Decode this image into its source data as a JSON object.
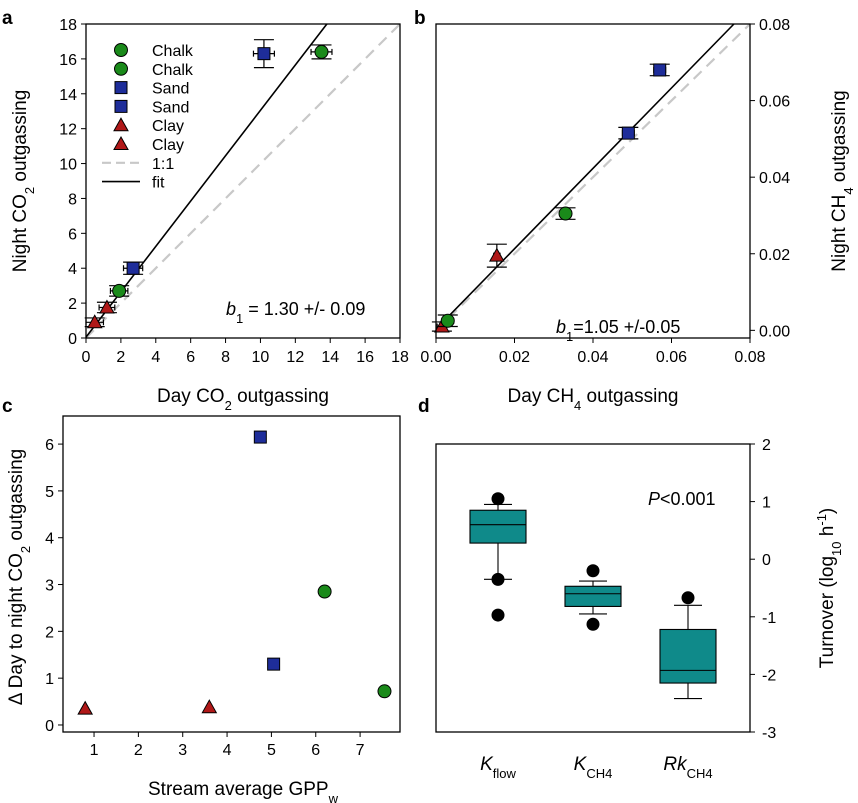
{
  "chart_data": [
    {
      "panel": "a",
      "type": "scatter",
      "xlabel": "Day CO2 outgassing",
      "ylabel": "Night CO2 outgassing",
      "xlim": [
        0,
        18
      ],
      "ylim": [
        0,
        18
      ],
      "xticks": [
        0,
        2,
        4,
        6,
        8,
        10,
        12,
        14,
        16,
        18
      ],
      "yticks": [
        0,
        2,
        4,
        6,
        8,
        10,
        12,
        14,
        16,
        18
      ],
      "legend_position": "top-left",
      "legend": [
        {
          "label": "Chalk",
          "marker": "circle",
          "color": "#1a8a1a"
        },
        {
          "label": "Chalk",
          "marker": "circle",
          "color": "#1a8a1a"
        },
        {
          "label": "Sand",
          "marker": "square",
          "color": "#1e2d9a"
        },
        {
          "label": "Sand",
          "marker": "square",
          "color": "#1e2d9a"
        },
        {
          "label": "Clay",
          "marker": "triangle",
          "color": "#b01818"
        },
        {
          "label": "Clay",
          "marker": "triangle",
          "color": "#b01818"
        },
        {
          "label": "1:1",
          "line": "dashed",
          "color": "#c8c8c8"
        },
        {
          "label": "fit",
          "line": "solid",
          "color": "#000000"
        }
      ],
      "annotation_var": "b",
      "annotation_sub": "1",
      "annotation_value": " = 1.30 +/- 0.09",
      "fit": {
        "slope": 1.3,
        "intercept": 0.05
      },
      "points": [
        {
          "group": "Clay",
          "x": 0.5,
          "y": 0.9,
          "xerr": 0.5,
          "yerr": 0.25
        },
        {
          "group": "Clay",
          "x": 1.2,
          "y": 1.75,
          "xerr": 0.45,
          "yerr": 0.3
        },
        {
          "group": "Chalk",
          "x": 1.9,
          "y": 2.7,
          "xerr": 0.5,
          "yerr": 0.3
        },
        {
          "group": "Sand",
          "x": 2.7,
          "y": 4.0,
          "xerr": 0.55,
          "yerr": 0.35
        },
        {
          "group": "Sand",
          "x": 10.2,
          "y": 16.3,
          "xerr": 0.6,
          "yerr": 0.8
        },
        {
          "group": "Chalk",
          "x": 13.5,
          "y": 16.4,
          "xerr": 0.6,
          "yerr": 0.4
        }
      ]
    },
    {
      "panel": "b",
      "type": "scatter",
      "xlabel": "Day CH4 outgassing",
      "ylabel": "Night CH4 outgassing",
      "xlim": [
        0,
        0.08
      ],
      "ylim": [
        -0.002,
        0.08
      ],
      "xticks": [
        "0.00",
        "0.02",
        "0.04",
        "0.06",
        "0.08"
      ],
      "yticks": [
        "0.00",
        "0.02",
        "0.04",
        "0.06",
        "0.08"
      ],
      "y_axis_side": "right",
      "annotation_var": "b",
      "annotation_sub": "1",
      "annotation_value": "=1.05 +/-0.05",
      "fit": {
        "slope": 1.05,
        "intercept": 0.0003
      },
      "points": [
        {
          "group": "Clay",
          "x": 0.0015,
          "y": 0.001,
          "xerr": 0.0012,
          "yerr": 0.0012
        },
        {
          "group": "Chalk",
          "x": 0.003,
          "y": 0.0025,
          "xerr": 0.0015,
          "yerr": 0.0015
        },
        {
          "group": "Clay",
          "x": 0.0155,
          "y": 0.0195,
          "xerr": 0.0008,
          "yerr": 0.003
        },
        {
          "group": "Chalk",
          "x": 0.033,
          "y": 0.0305,
          "xerr": 0.0015,
          "yerr": 0.0015
        },
        {
          "group": "Sand",
          "x": 0.049,
          "y": 0.0515,
          "xerr": 0.0015,
          "yerr": 0.0015
        },
        {
          "group": "Sand",
          "x": 0.057,
          "y": 0.068,
          "xerr": 0.0015,
          "yerr": 0.0015
        }
      ]
    },
    {
      "panel": "c",
      "type": "scatter",
      "xlabel": "Stream average GPP",
      "xlabel_sub": "w",
      "ylabel": "Δ Day to night CO2 outgassing",
      "xlim": [
        0.3,
        7.9
      ],
      "ylim": [
        -0.15,
        6.6
      ],
      "xticks": [
        1,
        2,
        3,
        4,
        5,
        6,
        7
      ],
      "yticks": [
        0,
        1,
        2,
        3,
        4,
        5,
        6
      ],
      "points": [
        {
          "group": "Clay",
          "x": 0.8,
          "y": 0.35
        },
        {
          "group": "Clay",
          "x": 3.6,
          "y": 0.38
        },
        {
          "group": "Sand",
          "x": 4.75,
          "y": 6.15
        },
        {
          "group": "Sand",
          "x": 5.05,
          "y": 1.3
        },
        {
          "group": "Chalk",
          "x": 6.2,
          "y": 2.85
        },
        {
          "group": "Chalk",
          "x": 7.55,
          "y": 0.72
        }
      ]
    },
    {
      "panel": "d",
      "type": "box",
      "ylabel": "Turnover (log10 h-1)",
      "y_axis_side": "right",
      "ylim": [
        -3,
        2
      ],
      "yticks": [
        -3,
        -2,
        -1,
        0,
        1,
        2
      ],
      "annotation_var": "P",
      "annotation_value": "<0.001",
      "color": "#0f8a8a",
      "boxes": [
        {
          "label_main": "K",
          "label_sub": "flow",
          "whisker_low": -0.35,
          "q1": 0.28,
          "median": 0.6,
          "q3": 0.85,
          "whisker_high": 0.95,
          "outliers": [
            1.05,
            -0.35,
            -0.97
          ]
        },
        {
          "label_main": "K",
          "label_sub": "CH4",
          "whisker_low": -0.95,
          "q1": -0.82,
          "median": -0.6,
          "q3": -0.47,
          "whisker_high": -0.38,
          "outliers": [
            -0.2,
            -1.13
          ]
        },
        {
          "label_main": "Rk",
          "label_sub": "CH4",
          "whisker_low": -2.42,
          "q1": -2.15,
          "median": -1.93,
          "q3": -1.22,
          "whisker_high": -0.8,
          "outliers": [
            -0.67
          ]
        }
      ]
    }
  ],
  "colors": {
    "Chalk": "#1a8a1a",
    "Sand": "#1e2d9a",
    "Clay": "#b01818",
    "box": "#0f8a8a",
    "one_to_one": "#c8c8c8"
  }
}
